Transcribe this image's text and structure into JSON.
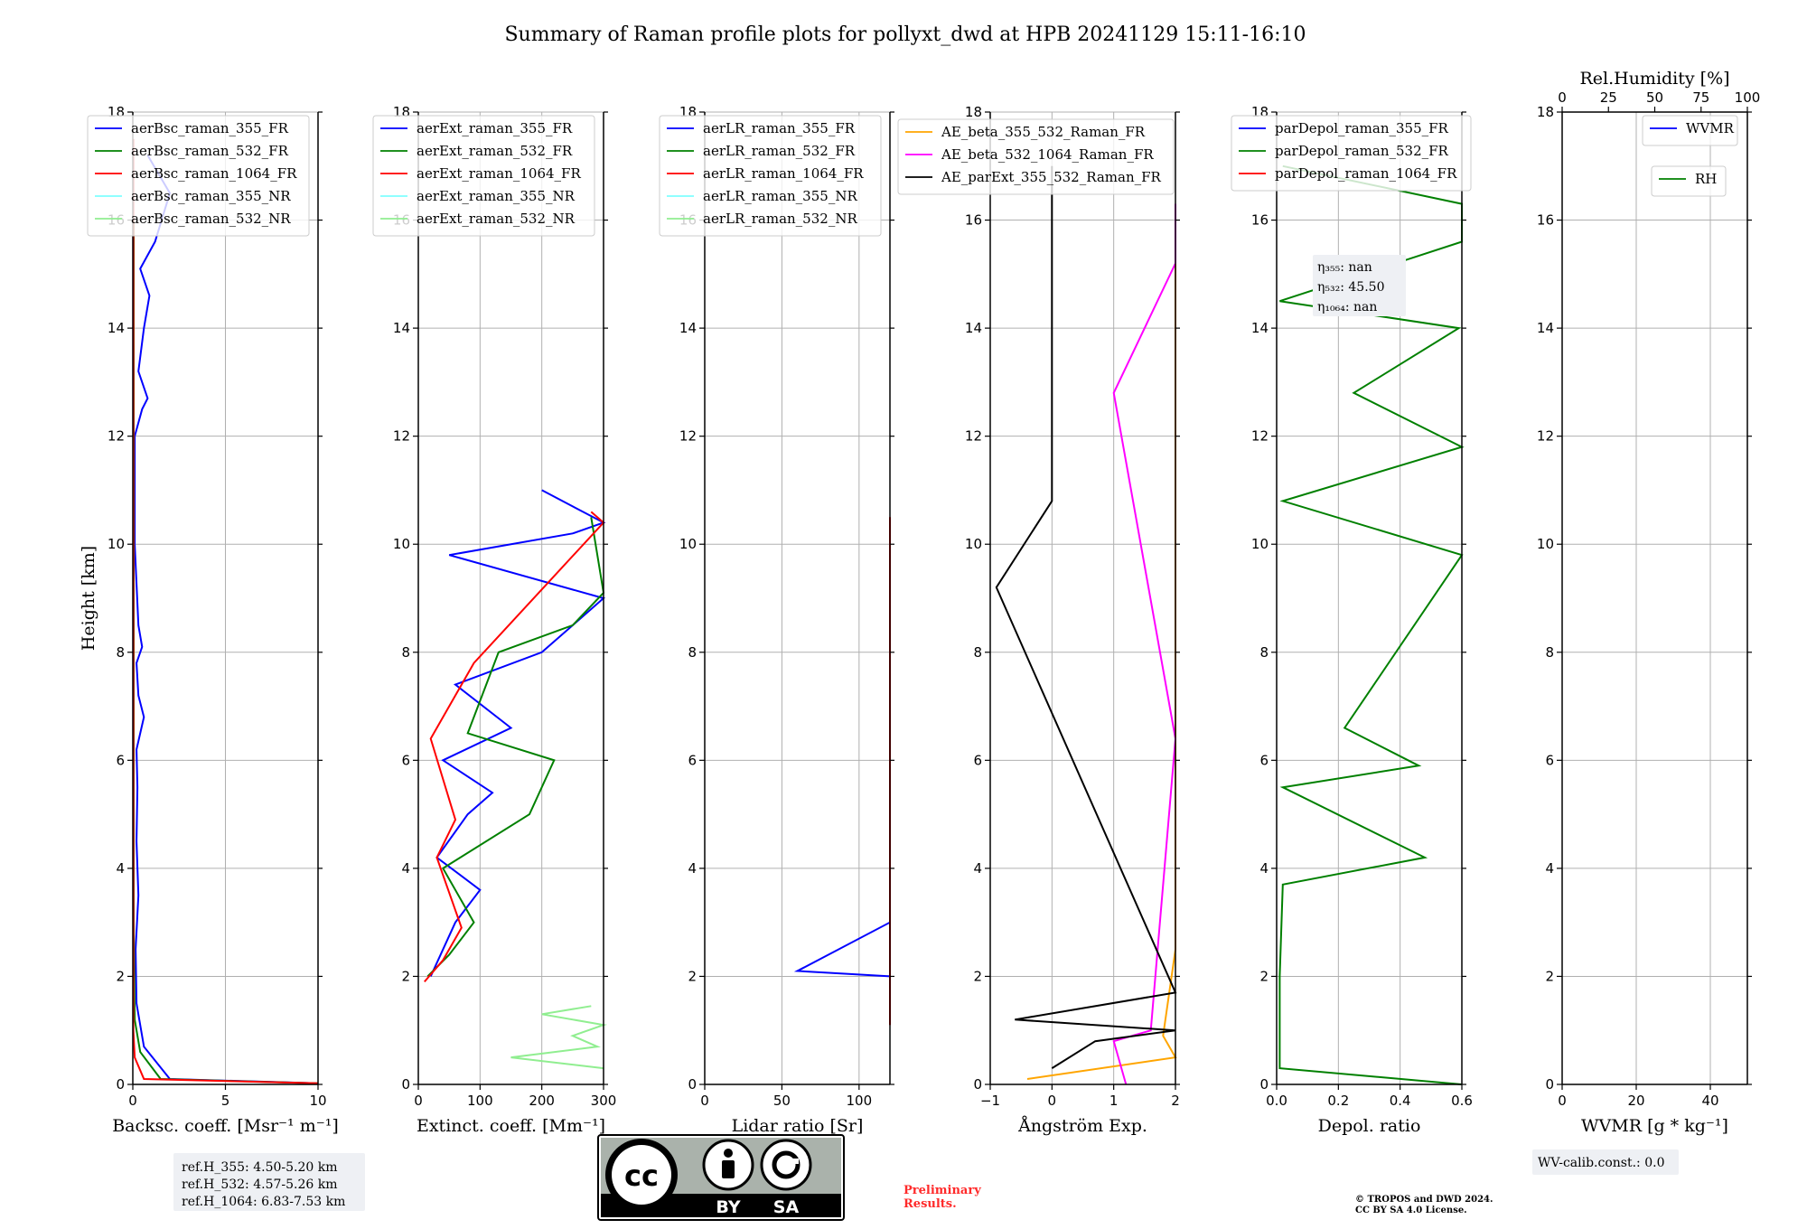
{
  "title": "Summary of Raman profile plots for pollyxt_dwd at HPB 20241129 15:11-16:10",
  "y_label": "Height [km]",
  "y_ticks": [
    "0",
    "2",
    "4",
    "6",
    "8",
    "10",
    "12",
    "14",
    "16",
    "18"
  ],
  "panels": [
    {
      "id": "bsc",
      "xlabel": "Backsc. coeff. [Msr⁻¹ m⁻¹]",
      "xlim": [
        0,
        10
      ],
      "xticks": [
        "0",
        "5",
        "10"
      ],
      "legend": [
        {
          "name": "aerBsc_raman_355_FR",
          "color": "#0000ff"
        },
        {
          "name": "aerBsc_raman_532_FR",
          "color": "#008000"
        },
        {
          "name": "aerBsc_raman_1064_FR",
          "color": "#ff0000"
        },
        {
          "name": "aerBsc_raman_355_NR",
          "color": "#7fffff"
        },
        {
          "name": "aerBsc_raman_532_NR",
          "color": "#90ee90"
        }
      ]
    },
    {
      "id": "ext",
      "xlabel": "Extinct. coeff. [Mm⁻¹]",
      "xlim": [
        0,
        300
      ],
      "xticks": [
        "0",
        "100",
        "200",
        "300"
      ],
      "legend": [
        {
          "name": "aerExt_raman_355_FR",
          "color": "#0000ff"
        },
        {
          "name": "aerExt_raman_532_FR",
          "color": "#008000"
        },
        {
          "name": "aerExt_raman_1064_FR",
          "color": "#ff0000"
        },
        {
          "name": "aerExt_raman_355_NR",
          "color": "#7fffff"
        },
        {
          "name": "aerExt_raman_532_NR",
          "color": "#90ee90"
        }
      ]
    },
    {
      "id": "lr",
      "xlabel": "Lidar ratio [Sr]",
      "xlim": [
        0,
        120
      ],
      "xticks": [
        "0",
        "50",
        "100"
      ],
      "legend": [
        {
          "name": "aerLR_raman_355_FR",
          "color": "#0000ff"
        },
        {
          "name": "aerLR_raman_532_FR",
          "color": "#008000"
        },
        {
          "name": "aerLR_raman_1064_FR",
          "color": "#ff0000"
        },
        {
          "name": "aerLR_raman_355_NR",
          "color": "#7fffff"
        },
        {
          "name": "aerLR_raman_532_NR",
          "color": "#90ee90"
        }
      ]
    },
    {
      "id": "ae",
      "xlabel": "Ångström Exp.",
      "xlim": [
        -1,
        2
      ],
      "xticks": [
        "−1",
        "0",
        "1",
        "2"
      ],
      "legend": [
        {
          "name": "AE_beta_355_532_Raman_FR",
          "color": "#ffa500"
        },
        {
          "name": "AE_beta_532_1064_Raman_FR",
          "color": "#ff00ff"
        },
        {
          "name": "AE_parExt_355_532_Raman_FR",
          "color": "#000000"
        }
      ]
    },
    {
      "id": "depol",
      "xlabel": "Depol. ratio",
      "xlim": [
        0,
        0.6
      ],
      "xticks": [
        "0.0",
        "0.2",
        "0.4",
        "0.6"
      ],
      "legend": [
        {
          "name": "parDepol_raman_355_FR",
          "color": "#0000ff"
        },
        {
          "name": "parDepol_raman_532_FR",
          "color": "#008000"
        },
        {
          "name": "parDepol_raman_1064_FR",
          "color": "#ff0000"
        }
      ],
      "eta_box": [
        "η₃₅₅: nan",
        "η₅₃₂: 45.50",
        "η₁₀₆₄: nan"
      ]
    },
    {
      "id": "wvmr",
      "xlabel": "WVMR [g * kg⁻¹]",
      "xlim": [
        0,
        50
      ],
      "xticks": [
        "0",
        "20",
        "40"
      ],
      "top_label": "Rel.Humidity [%]",
      "top_xlim": [
        0,
        100
      ],
      "top_xticks": [
        "0",
        "25",
        "50",
        "75",
        "100"
      ],
      "legend": [
        {
          "name": "WVMR",
          "color": "#0000ff"
        }
      ],
      "legend2": [
        {
          "name": "RH",
          "color": "#008000"
        }
      ]
    }
  ],
  "ref_box": [
    "ref.H_355: 4.50-5.20 km",
    "ref.H_532: 4.57-5.26 km",
    "ref.H_1064: 6.83-7.53 km"
  ],
  "wv_calib": "WV-calib.const.: 0.0",
  "logo": {
    "icon": "cc-by-sa-icon",
    "text_by": "BY",
    "text_sa": "SA"
  },
  "preliminary": [
    "Preliminary",
    "Results."
  ],
  "copyright": [
    "© TROPOS and DWD 2024.",
    "CC BY SA 4.0 License."
  ],
  "chart_data": [
    {
      "type": "line",
      "title": "",
      "xlabel": "Backsc. coeff. [Msr⁻¹ m⁻¹]",
      "ylabel": "Height [km]",
      "xlim": [
        0,
        10
      ],
      "ylim": [
        0,
        18
      ],
      "series": [
        {
          "name": "aerBsc_raman_355_FR",
          "color": "#0000ff",
          "x": [
            10,
            2.0,
            0.6,
            0.2,
            0.15,
            0.3,
            0.2,
            0.25,
            0.2,
            0.6,
            0.3,
            0.2,
            0.5,
            0.3,
            0.1,
            0.1,
            0.5,
            0.8,
            0.3,
            0.6,
            0.9,
            0.4,
            1.2,
            2.0,
            0.8
          ],
          "y": [
            0.02,
            0.1,
            0.7,
            1.5,
            2.5,
            3.5,
            4.5,
            5.5,
            6.2,
            6.8,
            7.2,
            7.8,
            8.1,
            8.5,
            10,
            12,
            12.5,
            12.7,
            13.2,
            14.0,
            14.6,
            15.1,
            15.6,
            16.5,
            17.2
          ]
        },
        {
          "name": "aerBsc_raman_532_FR",
          "color": "#008000",
          "x": [
            10,
            1.5,
            0.4,
            0.1,
            0.05,
            0.05
          ],
          "y": [
            0.02,
            0.1,
            0.6,
            1.2,
            3,
            16
          ]
        },
        {
          "name": "aerBsc_raman_1064_FR",
          "color": "#ff0000",
          "x": [
            10,
            0.6,
            0.1,
            0.03,
            0.03
          ],
          "y": [
            0.02,
            0.1,
            0.5,
            1.0,
            17.5
          ]
        }
      ]
    },
    {
      "type": "line",
      "title": "",
      "xlabel": "Extinct. coeff. [Mm⁻¹]",
      "ylabel": "Height [km]",
      "xlim": [
        0,
        300
      ],
      "ylim": [
        0,
        18
      ],
      "series": [
        {
          "name": "aerExt_raman_355_FR",
          "color": "#0000ff",
          "x": [
            20,
            60,
            100,
            30,
            80,
            120,
            40,
            150,
            60,
            200,
            300,
            50,
            250,
            300,
            200
          ],
          "y": [
            2.0,
            3.0,
            3.6,
            4.2,
            5.0,
            5.4,
            6.0,
            6.6,
            7.4,
            8.0,
            9.0,
            9.8,
            10.2,
            10.4,
            11.0
          ]
        },
        {
          "name": "aerExt_raman_532_FR",
          "color": "#008000",
          "x": [
            15,
            50,
            90,
            40,
            180,
            220,
            80,
            130,
            250,
            300,
            280
          ],
          "y": [
            2.0,
            2.4,
            3.0,
            4.0,
            5.0,
            6.0,
            6.5,
            8.0,
            8.5,
            9.1,
            10.5
          ]
        },
        {
          "name": "aerExt_raman_1064_FR",
          "color": "#ff0000",
          "x": [
            10,
            40,
            70,
            30,
            60,
            20,
            90,
            300,
            280
          ],
          "y": [
            1.9,
            2.3,
            2.9,
            4.2,
            4.9,
            6.4,
            7.8,
            10.4,
            10.6
          ]
        },
        {
          "name": "aerExt_raman_532_NR",
          "color": "#90ee90",
          "x": [
            300,
            150,
            290,
            250,
            300,
            200,
            280
          ],
          "y": [
            0.3,
            0.5,
            0.7,
            0.9,
            1.1,
            1.3,
            1.45
          ]
        }
      ]
    },
    {
      "type": "line",
      "title": "",
      "xlabel": "Lidar ratio [Sr]",
      "ylabel": "Height [km]",
      "xlim": [
        0,
        120
      ],
      "ylim": [
        0,
        18
      ],
      "series": [
        {
          "name": "aerLR_raman_355_FR",
          "color": "#0000ff",
          "x": [
            120,
            60,
            120,
            120,
            120,
            120
          ],
          "y": [
            2.0,
            2.1,
            3.0,
            5.0,
            8.0,
            9.8
          ]
        },
        {
          "name": "aerLR_raman_532_FR",
          "color": "#008000",
          "x": [
            120,
            120,
            120
          ],
          "y": [
            2.8,
            6.8,
            9.1
          ]
        },
        {
          "name": "aerLR_raman_1064_FR",
          "color": "#ff0000",
          "x": [
            120,
            120,
            120,
            120,
            120
          ],
          "y": [
            1.1,
            1.9,
            4.7,
            7.6,
            10.5
          ]
        }
      ]
    },
    {
      "type": "line",
      "title": "",
      "xlabel": "Ångström Exp.",
      "ylabel": "Height [km]",
      "xlim": [
        -1,
        2
      ],
      "ylim": [
        0,
        18
      ],
      "series": [
        {
          "name": "AE_beta_355_532_Raman_FR",
          "color": "#ffa500",
          "x": [
            -0.4,
            2.0,
            1.8,
            2.0,
            2.0,
            2.0,
            2.0,
            2.0,
            2.0
          ],
          "y": [
            0.1,
            0.5,
            0.9,
            2.5,
            5.0,
            8.0,
            10.2,
            13.5,
            15.5
          ]
        },
        {
          "name": "AE_beta_532_1064_Raman_FR",
          "color": "#ff00ff",
          "x": [
            1.2,
            1.1,
            1.0,
            1.6,
            2.0,
            1.0,
            2.0,
            2.0
          ],
          "y": [
            0.0,
            0.4,
            0.8,
            1.0,
            6.4,
            12.8,
            15.2,
            16.3
          ]
        },
        {
          "name": "AE_parExt_355_532_Raman_FR",
          "color": "#000000",
          "x": [
            0.0,
            0.7,
            2.0,
            -0.6,
            2.0,
            -0.9,
            0.0,
            0.0,
            0.0
          ],
          "y": [
            0.3,
            0.8,
            1.0,
            1.2,
            1.7,
            9.2,
            10.8,
            11.2,
            17.0
          ]
        }
      ]
    },
    {
      "type": "line",
      "title": "",
      "xlabel": "Depol. ratio",
      "ylabel": "Height [km]",
      "xlim": [
        0,
        0.6
      ],
      "ylim": [
        0,
        18
      ],
      "series": [
        {
          "name": "parDepol_raman_532_FR",
          "color": "#008000",
          "x": [
            0.6,
            0.01,
            0.01,
            0.02,
            0.48,
            0.02,
            0.46,
            0.22,
            0.6,
            0.02,
            0.6,
            0.25,
            0.59,
            0.01,
            0.6,
            0.6,
            0.02
          ],
          "y": [
            0.0,
            0.3,
            2.0,
            3.7,
            4.2,
            5.5,
            5.9,
            6.6,
            9.8,
            10.8,
            11.8,
            12.8,
            14.0,
            14.5,
            15.6,
            16.3,
            17.0
          ]
        }
      ]
    },
    {
      "type": "line",
      "title": "",
      "xlabel": "WVMR [g * kg⁻¹]",
      "ylabel": "Height [km]",
      "xlim": [
        0,
        50
      ],
      "ylim": [
        0,
        18
      ],
      "series": []
    }
  ]
}
